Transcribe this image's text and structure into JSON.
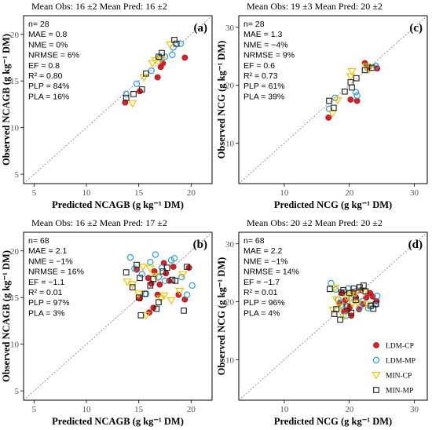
{
  "colors": {
    "ldm_cp": "#d42026",
    "ldm_mp": "#2b9fd8",
    "min_cp": "#f2c200",
    "min_mp": "#222222",
    "grid": "#808080"
  },
  "legend": [
    {
      "key": "ldm_cp",
      "label": "LDM-CP",
      "marker": "filled-circle"
    },
    {
      "key": "ldm_mp",
      "label": "LDM-MP",
      "marker": "open-circle"
    },
    {
      "key": "min_cp",
      "label": "MIN-CP",
      "marker": "open-triangle-down"
    },
    {
      "key": "min_mp",
      "label": "MIN-MP",
      "marker": "open-square"
    }
  ],
  "chart_data": [
    {
      "type": "scatter",
      "panel": "(a)",
      "title": "Mean Obs: 16 ±2     Mean Pred: 16 ±2",
      "xlabel": "Predicted NCAGB (g kg⁻¹ DM)",
      "ylabel": "Observed NCAGB (g kg⁻¹ DM)",
      "xlim": [
        4,
        22
      ],
      "ylim": [
        4,
        22
      ],
      "xticks": [
        5,
        10,
        15,
        20
      ],
      "yticks": [
        5,
        10,
        15,
        20
      ],
      "identity_line": true,
      "stats": [
        "n= 28",
        "MAE = 0.8",
        "NME = 0%",
        "NRMSE = 6%",
        "EF = 0.8",
        "R² = 0.80",
        "PLP = 84%",
        "PLA = 16%"
      ],
      "series": [
        {
          "key": "ldm_cp",
          "name": "LDM-CP",
          "points": [
            [
              13.7,
              12.7
            ],
            [
              15.1,
              13.9
            ],
            [
              16.8,
              15.4
            ],
            [
              17.1,
              16.5
            ],
            [
              17.3,
              16.9
            ],
            [
              19.4,
              17.5
            ]
          ]
        },
        {
          "key": "ldm_mp",
          "name": "LDM-MP",
          "points": [
            [
              13.8,
              13.6
            ],
            [
              14.8,
              14.7
            ],
            [
              16.2,
              16.1
            ],
            [
              17.0,
              17.5
            ],
            [
              17.5,
              17.6
            ],
            [
              18.2,
              17.8
            ],
            [
              18.3,
              18.6
            ],
            [
              19.0,
              19.0
            ]
          ]
        },
        {
          "key": "min_cp",
          "name": "MIN-CP",
          "points": [
            [
              14.4,
              12.6
            ],
            [
              15.5,
              15.4
            ],
            [
              16.3,
              16.9
            ],
            [
              16.6,
              17.2
            ],
            [
              17.1,
              17.3
            ],
            [
              18.0,
              18.9
            ]
          ]
        },
        {
          "key": "min_mp",
          "name": "MIN-MP",
          "points": [
            [
              13.8,
              13.2
            ],
            [
              14.5,
              13.6
            ],
            [
              15.3,
              14.1
            ],
            [
              15.7,
              15.8
            ],
            [
              16.9,
              17.6
            ],
            [
              17.2,
              18.0
            ],
            [
              18.4,
              19.4
            ],
            [
              18.6,
              19.0
            ]
          ]
        }
      ]
    },
    {
      "type": "scatter",
      "panel": "(c)",
      "title": "Mean Obs: 19 ±3     Mean Pred: 20 ±2",
      "xlabel": "Predicted NCG (g kg⁻¹ DM)",
      "ylabel": "Observed NCG (g kg⁻¹ DM)",
      "xlim": [
        3,
        32
      ],
      "ylim": [
        3,
        32
      ],
      "xticks": [
        10,
        20,
        30
      ],
      "yticks": [
        10,
        20,
        30
      ],
      "identity_line": true,
      "stats": [
        "n= 28",
        "MAE = 1.3",
        "NME = −4%",
        "NRMSE = 9%",
        "EF = 0.6",
        "R² = 0.73",
        "PLP = 61%",
        "PLA = 39%"
      ],
      "series": [
        {
          "key": "ldm_cp",
          "name": "LDM-CP",
          "points": [
            [
              16.8,
              14.4
            ],
            [
              20.2,
              17.5
            ],
            [
              21.2,
              17.3
            ],
            [
              22.4,
              23.8
            ],
            [
              23.0,
              23.2
            ],
            [
              24.3,
              22.9
            ]
          ]
        },
        {
          "key": "ldm_mp",
          "name": "LDM-MP",
          "points": [
            [
              16.9,
              15.9
            ],
            [
              17.8,
              17.8
            ],
            [
              21.0,
              18.8
            ],
            [
              21.2,
              18.2
            ],
            [
              22.8,
              23.0
            ],
            [
              24.1,
              23.3
            ]
          ]
        },
        {
          "key": "min_cp",
          "name": "MIN-CP",
          "points": [
            [
              17.4,
              15.1
            ],
            [
              18.2,
              17.4
            ],
            [
              20.2,
              21.5
            ],
            [
              20.4,
              22.4
            ],
            [
              22.6,
              23.2
            ],
            [
              23.0,
              22.7
            ]
          ]
        },
        {
          "key": "min_mp",
          "name": "MIN-MP",
          "points": [
            [
              16.9,
              17.3
            ],
            [
              17.6,
              16.1
            ],
            [
              19.3,
              18.9
            ],
            [
              20.4,
              19.6
            ],
            [
              20.2,
              20.5
            ],
            [
              21.1,
              21.2
            ],
            [
              22.4,
              22.6
            ],
            [
              23.5,
              23.0
            ]
          ]
        }
      ]
    },
    {
      "type": "scatter",
      "panel": "(b)",
      "title": "Mean Obs: 16 ±2     Mean Pred: 17 ±2",
      "xlabel": "Predicted NCAGB (g kg⁻¹ DM)",
      "ylabel": "Observed NCAGB (g kg⁻¹ DM)",
      "xlim": [
        4,
        22
      ],
      "ylim": [
        4,
        22
      ],
      "xticks": [
        5,
        10,
        15,
        20
      ],
      "yticks": [
        5,
        10,
        15,
        20
      ],
      "identity_line": true,
      "stats": [
        "n= 68",
        "MAE = 2.1",
        "NME = −1%",
        "NRMSE = 16%",
        "EF = −1.1",
        "R² = 0.01",
        "PLP = 97%",
        "PLA = 3%"
      ],
      "series": [
        {
          "key": "ldm_cp",
          "name": "LDM-CP",
          "points": [
            [
              14.8,
              18.0
            ],
            [
              15.1,
              14.9
            ],
            [
              15.9,
              17.1
            ],
            [
              16.2,
              16.5
            ],
            [
              16.4,
              13.9
            ],
            [
              16.5,
              17.8
            ],
            [
              16.8,
              15.3
            ],
            [
              17.0,
              16.4
            ],
            [
              17.6,
              17.6
            ],
            [
              17.9,
              16.8
            ],
            [
              18.3,
              18.3
            ],
            [
              18.8,
              15.3
            ],
            [
              19.4,
              14.8
            ],
            [
              19.8,
              18.2
            ],
            [
              16.0,
              13.4
            ],
            [
              17.4,
              18.7
            ]
          ]
        },
        {
          "key": "ldm_mp",
          "name": "LDM-MP",
          "points": [
            [
              14.2,
              19.3
            ],
            [
              14.6,
              18.1
            ],
            [
              15.3,
              17.5
            ],
            [
              16.1,
              18.8
            ],
            [
              16.6,
              19.6
            ],
            [
              17.2,
              18.2
            ],
            [
              17.5,
              16.8
            ],
            [
              18.1,
              19.0
            ],
            [
              18.4,
              19.2
            ],
            [
              19.1,
              17.2
            ],
            [
              19.6,
              15.3
            ],
            [
              20.1,
              16.3
            ],
            [
              16.9,
              17.2
            ],
            [
              15.7,
              15.4
            ]
          ]
        },
        {
          "key": "min_cp",
          "name": "MIN-CP",
          "points": [
            [
              13.9,
              16.7
            ],
            [
              14.4,
              16.4
            ],
            [
              15.0,
              15.4
            ],
            [
              15.7,
              13.1
            ],
            [
              16.1,
              18.1
            ],
            [
              17.1,
              14.9
            ],
            [
              17.4,
              15.2
            ],
            [
              18.1,
              14.7
            ],
            [
              18.9,
              15.7
            ],
            [
              19.2,
              17.5
            ],
            [
              16.6,
              17.3
            ],
            [
              15.4,
              18.3
            ]
          ]
        },
        {
          "key": "min_mp",
          "name": "MIN-MP",
          "points": [
            [
              13.8,
              17.7
            ],
            [
              14.4,
              16.1
            ],
            [
              14.8,
              18.5
            ],
            [
              15.0,
              15.0
            ],
            [
              15.2,
              13.1
            ],
            [
              15.6,
              15.4
            ],
            [
              16.1,
              16.3
            ],
            [
              16.4,
              17.0
            ],
            [
              16.9,
              14.5
            ],
            [
              17.3,
              17.8
            ],
            [
              17.7,
              18.2
            ],
            [
              18.2,
              16.9
            ],
            [
              18.5,
              16.8
            ],
            [
              19.3,
              13.6
            ],
            [
              19.6,
              18.3
            ],
            [
              15.1,
              17.1
            ],
            [
              16.7,
              13.8
            ]
          ]
        }
      ]
    },
    {
      "type": "scatter",
      "panel": "(d)",
      "title": "Mean Obs: 20 ±2     Mean Pred: 20 ±2",
      "xlabel": "Predicted NCG (g kg⁻¹ DM)",
      "ylabel": "Observed NCG (g kg⁻¹ DM)",
      "xlim": [
        3,
        32
      ],
      "ylim": [
        3,
        32
      ],
      "xticks": [
        10,
        20,
        30
      ],
      "yticks": [
        10,
        20,
        30
      ],
      "identity_line": true,
      "stats": [
        "n= 68",
        "MAE = 2.2",
        "NME = −1%",
        "NRMSE = 14%",
        "EF = −1.7",
        "R² = 0.01",
        "PLP = 96%",
        "PLA = 4%"
      ],
      "series": [
        {
          "key": "ldm_cp",
          "name": "LDM-CP",
          "points": [
            [
              18.5,
              19.8
            ],
            [
              18.9,
              21.5
            ],
            [
              19.4,
              20.3
            ],
            [
              19.8,
              18.6
            ],
            [
              20.1,
              19.1
            ],
            [
              20.3,
              17.6
            ],
            [
              20.6,
              21.7
            ],
            [
              21.0,
              20.8
            ],
            [
              21.5,
              18.7
            ],
            [
              22.1,
              19.6
            ],
            [
              22.6,
              20.7
            ],
            [
              23.2,
              21.5
            ],
            [
              23.6,
              20.9
            ],
            [
              24.2,
              20.1
            ],
            [
              19.2,
              18.3
            ],
            [
              21.8,
              22.0
            ]
          ]
        },
        {
          "key": "ldm_mp",
          "name": "LDM-MP",
          "points": [
            [
              17.2,
              23.2
            ],
            [
              17.9,
              22.1
            ],
            [
              18.3,
              20.4
            ],
            [
              19.0,
              19.2
            ],
            [
              19.8,
              22.3
            ],
            [
              20.4,
              20.6
            ],
            [
              21.2,
              21.9
            ],
            [
              22.0,
              20.1
            ],
            [
              22.9,
              18.9
            ],
            [
              23.4,
              19.4
            ],
            [
              24.0,
              19.5
            ],
            [
              24.3,
              21.0
            ],
            [
              19.5,
              17.6
            ],
            [
              21.6,
              19.0
            ]
          ]
        },
        {
          "key": "min_cp",
          "name": "MIN-CP",
          "points": [
            [
              17.5,
              18.6
            ],
            [
              18.0,
              20.4
            ],
            [
              18.6,
              19.1
            ],
            [
              19.1,
              17.4
            ],
            [
              19.6,
              20.8
            ],
            [
              20.2,
              21.2
            ],
            [
              20.9,
              21.4
            ],
            [
              21.3,
              19.8
            ],
            [
              22.3,
              21.6
            ],
            [
              17.8,
              22.4
            ],
            [
              22.8,
              19.5
            ],
            [
              20.5,
              19.7
            ]
          ]
        },
        {
          "key": "min_mp",
          "name": "MIN-MP",
          "points": [
            [
              17.0,
              22.2
            ],
            [
              17.7,
              17.9
            ],
            [
              18.0,
              18.7
            ],
            [
              18.6,
              16.9
            ],
            [
              18.8,
              21.6
            ],
            [
              19.6,
              19.2
            ],
            [
              20.0,
              21.5
            ],
            [
              20.7,
              22.3
            ],
            [
              21.0,
              20.3
            ],
            [
              21.6,
              22.5
            ],
            [
              22.2,
              22.8
            ],
            [
              22.5,
              21.8
            ],
            [
              23.3,
              19.3
            ],
            [
              23.7,
              18.8
            ],
            [
              24.1,
              19.6
            ],
            [
              19.1,
              22.0
            ],
            [
              20.3,
              18.1
            ]
          ]
        }
      ]
    }
  ]
}
